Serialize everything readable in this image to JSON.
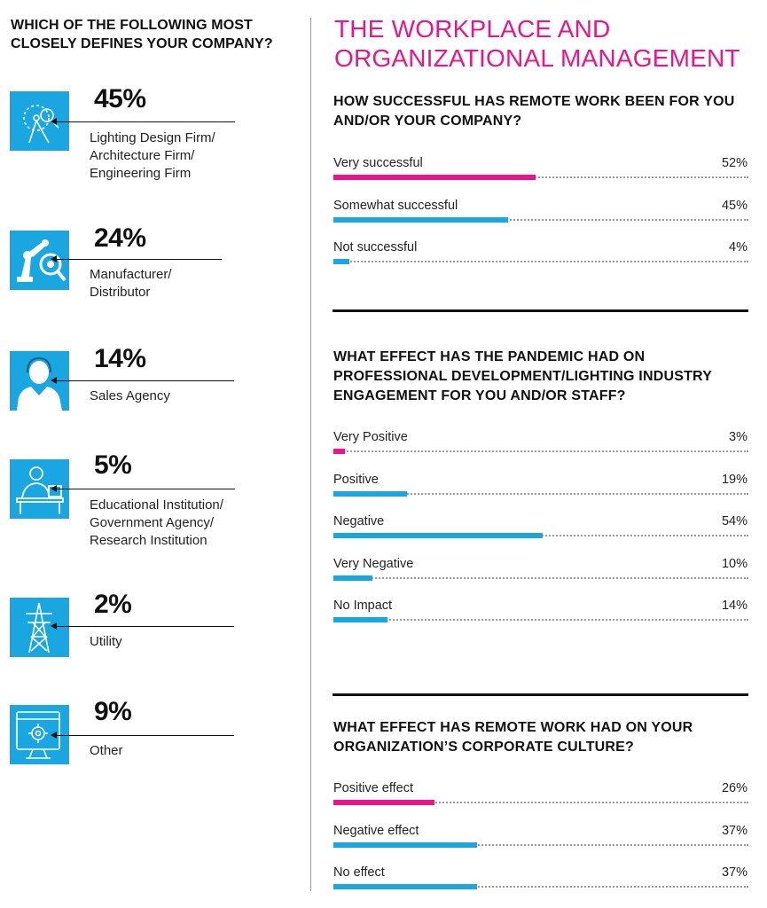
{
  "left": {
    "question": "WHICH OF THE FOLLOWING MOST CLOSELY DEFINES YOUR COMPANY?",
    "icon_color": "#1aa6e0",
    "items": [
      {
        "pct": "45%",
        "label": "Lighting Design Firm/\nArchitecture Firm/\nEngineering Firm",
        "icon": "drafting-compass-icon"
      },
      {
        "pct": "24%",
        "label": "Manufacturer/\nDistributor",
        "icon": "robot-arm-icon"
      },
      {
        "pct": "14%",
        "label": "Sales Agency",
        "icon": "headset-agent-icon"
      },
      {
        "pct": "5%",
        "label": "Educational Institution/\nGovernment Agency/\nResearch Institution",
        "icon": "desk-worker-icon"
      },
      {
        "pct": "2%",
        "label": "Utility",
        "icon": "power-tower-icon"
      },
      {
        "pct": "9%",
        "label": "Other",
        "icon": "monitor-gear-icon"
      }
    ]
  },
  "right": {
    "title": "THE WORKPLACE AND ORGANIZATIONAL MANAGEMENT",
    "title_color": "#e6178c",
    "highlight_color": "#e6178c",
    "bar_color": "#1aa6e0"
  },
  "chart_data": [
    {
      "type": "bar",
      "orientation": "horizontal",
      "title": "HOW SUCCESSFUL HAS REMOTE WORK BEEN FOR YOU AND/OR YOUR COMPANY?",
      "categories": [
        "Very successful",
        "Somewhat successful",
        "Not successful"
      ],
      "values": [
        52,
        45,
        4
      ],
      "value_labels": [
        "52%",
        "45%",
        "4%"
      ],
      "highlight_index": 0
    },
    {
      "type": "bar",
      "orientation": "horizontal",
      "title": "WHAT EFFECT HAS THE PANDEMIC HAD ON PROFESSIONAL DEVELOPMENT/LIGHTING INDUSTRY ENGAGEMENT FOR YOU AND/OR STAFF?",
      "categories": [
        "Very Positive",
        "Positive",
        "Negative",
        "Very Negative",
        "No Impact"
      ],
      "values": [
        3,
        19,
        54,
        10,
        14
      ],
      "value_labels": [
        "3%",
        "19%",
        "54%",
        "10%",
        "14%"
      ],
      "highlight_index": 0
    },
    {
      "type": "bar",
      "orientation": "horizontal",
      "title": "WHAT EFFECT HAS REMOTE WORK HAD ON YOUR ORGANIZATION’S CORPORATE CULTURE?",
      "categories": [
        "Positive effect",
        "Negative effect",
        "No effect"
      ],
      "values": [
        26,
        37,
        37
      ],
      "value_labels": [
        "26%",
        "37%",
        "37%"
      ],
      "highlight_index": 0
    }
  ]
}
